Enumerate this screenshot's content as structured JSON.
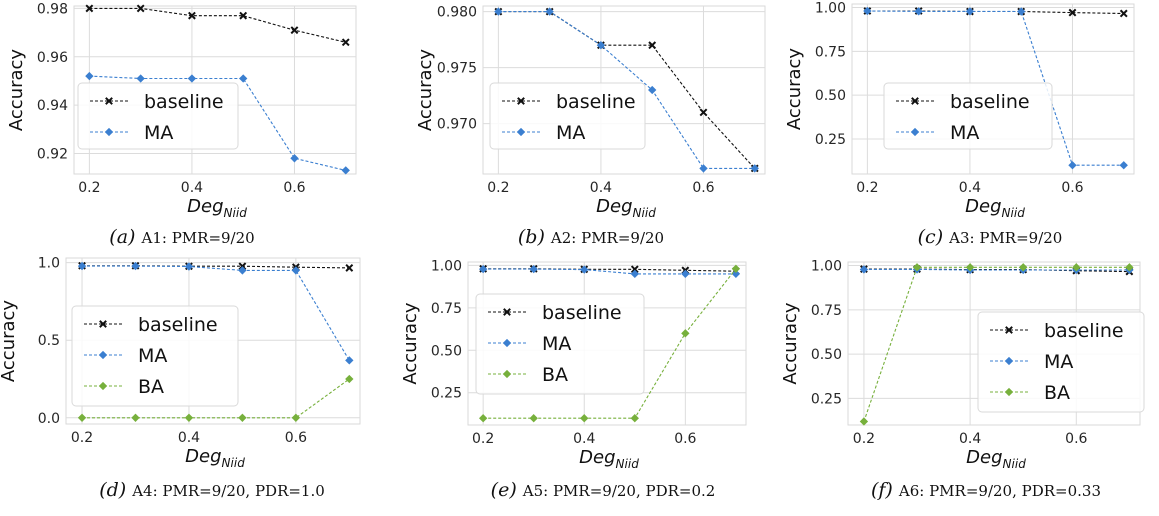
{
  "chart_data": [
    {
      "type": "line",
      "caption_letter": "(a)",
      "caption_text": "A1: PMR=9/20",
      "xlabel_main": "Deg",
      "xlabel_sub": "Niid",
      "ylabel": "Accuracy",
      "xlim": [
        0.17,
        0.72
      ],
      "ylim": [
        0.9115,
        0.981
      ],
      "xticks": [
        0.2,
        0.4,
        0.6
      ],
      "yticks": [
        0.92,
        0.94,
        0.96,
        0.98
      ],
      "x": [
        0.2,
        0.3,
        0.4,
        0.5,
        0.6,
        0.7
      ],
      "legend": "center-left",
      "series": [
        {
          "name": "baseline",
          "color": "#111111",
          "marker": "x",
          "values": [
            0.98,
            0.98,
            0.977,
            0.977,
            0.971,
            0.966
          ]
        },
        {
          "name": "MA",
          "color": "#3b7fd0",
          "marker": "diamond",
          "values": [
            0.952,
            0.951,
            0.951,
            0.951,
            0.918,
            0.913
          ]
        }
      ]
    },
    {
      "type": "line",
      "caption_letter": "(b)",
      "caption_text": "A2: PMR=9/20",
      "xlabel_main": "Deg",
      "xlabel_sub": "Niid",
      "ylabel": "Accuracy",
      "xlim": [
        0.17,
        0.72
      ],
      "ylim": [
        0.9655,
        0.9805
      ],
      "xticks": [
        0.2,
        0.4,
        0.6
      ],
      "yticks": [
        0.97,
        0.975,
        0.98
      ],
      "x": [
        0.2,
        0.3,
        0.4,
        0.5,
        0.6,
        0.7
      ],
      "legend": "lower-left",
      "series": [
        {
          "name": "baseline",
          "color": "#111111",
          "marker": "x",
          "values": [
            0.98,
            0.98,
            0.977,
            0.977,
            0.971,
            0.966
          ]
        },
        {
          "name": "MA",
          "color": "#3b7fd0",
          "marker": "diamond",
          "values": [
            0.98,
            0.98,
            0.977,
            0.973,
            0.966,
            0.966
          ]
        }
      ]
    },
    {
      "type": "line",
      "caption_letter": "(c)",
      "caption_text": "A3: PMR=9/20",
      "xlabel_main": "Deg",
      "xlabel_sub": "Niid",
      "ylabel": "Accuracy",
      "xlim": [
        0.17,
        0.72
      ],
      "ylim": [
        0.05,
        1.02
      ],
      "xticks": [
        0.2,
        0.4,
        0.6
      ],
      "yticks": [
        0.25,
        0.5,
        0.75,
        1.0
      ],
      "x": [
        0.2,
        0.3,
        0.4,
        0.5,
        0.6,
        0.7
      ],
      "legend": "center-left",
      "series": [
        {
          "name": "baseline",
          "color": "#111111",
          "marker": "x",
          "values": [
            0.98,
            0.98,
            0.977,
            0.977,
            0.971,
            0.966
          ]
        },
        {
          "name": "MA",
          "color": "#3b7fd0",
          "marker": "diamond",
          "values": [
            0.98,
            0.978,
            0.978,
            0.977,
            0.1,
            0.1
          ]
        }
      ]
    },
    {
      "type": "line",
      "caption_letter": "(d)",
      "caption_text": "A4: PMR=9/20, PDR=1.0",
      "xlabel_main": "Deg",
      "xlabel_sub": "Niid",
      "ylabel": "Accuracy",
      "xlim": [
        0.17,
        0.72
      ],
      "ylim": [
        -0.04,
        1.03
      ],
      "xticks": [
        0.2,
        0.4,
        0.6
      ],
      "yticks": [
        0.0,
        0.5,
        1.0
      ],
      "x": [
        0.2,
        0.3,
        0.4,
        0.5,
        0.6,
        0.7
      ],
      "legend": "center-left",
      "series": [
        {
          "name": "baseline",
          "color": "#111111",
          "marker": "x",
          "values": [
            0.98,
            0.98,
            0.977,
            0.977,
            0.971,
            0.966
          ]
        },
        {
          "name": "MA",
          "color": "#3b7fd0",
          "marker": "diamond",
          "values": [
            0.978,
            0.978,
            0.975,
            0.95,
            0.95,
            0.37
          ]
        },
        {
          "name": "BA",
          "color": "#77b03c",
          "marker": "diamond",
          "values": [
            0.0,
            0.0,
            0.0,
            0.0,
            0.0,
            0.25
          ]
        }
      ]
    },
    {
      "type": "line",
      "caption_letter": "(e)",
      "caption_text": "A5: PMR=9/20, PDR=0.2",
      "xlabel_main": "Deg",
      "xlabel_sub": "Niid",
      "ylabel": "Accuracy",
      "xlim": [
        0.17,
        0.72
      ],
      "ylim": [
        0.06,
        1.02
      ],
      "xticks": [
        0.2,
        0.4,
        0.6
      ],
      "yticks": [
        0.25,
        0.5,
        0.75,
        1.0
      ],
      "x": [
        0.2,
        0.3,
        0.4,
        0.5,
        0.6,
        0.7
      ],
      "legend": "center-left",
      "series": [
        {
          "name": "baseline",
          "color": "#111111",
          "marker": "x",
          "values": [
            0.98,
            0.98,
            0.977,
            0.977,
            0.971,
            0.966
          ]
        },
        {
          "name": "MA",
          "color": "#3b7fd0",
          "marker": "diamond",
          "values": [
            0.978,
            0.978,
            0.975,
            0.95,
            0.95,
            0.95
          ]
        },
        {
          "name": "BA",
          "color": "#77b03c",
          "marker": "diamond",
          "values": [
            0.1,
            0.1,
            0.1,
            0.1,
            0.6,
            0.98
          ]
        }
      ]
    },
    {
      "type": "line",
      "caption_letter": "(f)",
      "caption_text": "A6: PMR=9/20, PDR=0.33",
      "xlabel_main": "Deg",
      "xlabel_sub": "Niid",
      "ylabel": "Accuracy",
      "xlim": [
        0.17,
        0.72
      ],
      "ylim": [
        0.1,
        1.02
      ],
      "xticks": [
        0.2,
        0.4,
        0.6
      ],
      "yticks": [
        0.25,
        0.5,
        0.75,
        1.0
      ],
      "x": [
        0.2,
        0.3,
        0.4,
        0.5,
        0.6,
        0.7
      ],
      "legend": "lower-right",
      "series": [
        {
          "name": "baseline",
          "color": "#111111",
          "marker": "x",
          "values": [
            0.98,
            0.98,
            0.977,
            0.977,
            0.971,
            0.966
          ]
        },
        {
          "name": "MA",
          "color": "#3b7fd0",
          "marker": "diamond",
          "values": [
            0.978,
            0.978,
            0.975,
            0.975,
            0.975,
            0.975
          ]
        },
        {
          "name": "BA",
          "color": "#77b03c",
          "marker": "diamond",
          "values": [
            0.12,
            0.99,
            0.99,
            0.99,
            0.99,
            0.99
          ]
        }
      ]
    }
  ]
}
